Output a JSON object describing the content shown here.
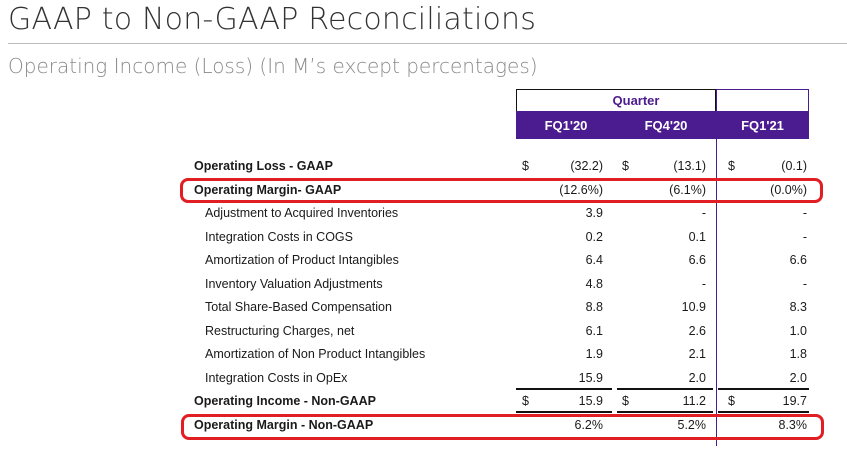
{
  "title": "GAAP to Non-GAAP Reconciliations",
  "subtitle": "Operating Income (Loss) (In M’s except percentages)",
  "header": {
    "group_label": "Quarter",
    "columns": [
      "FQ1'20",
      "FQ4'20",
      "FQ1'21"
    ]
  },
  "rows": [
    {
      "label": "Operating Loss - GAAP",
      "bold": true,
      "currency": "$",
      "values": [
        "(32.2)",
        "(13.1)",
        "(0.1)"
      ]
    },
    {
      "label": "Operating Margin- GAAP",
      "bold": true,
      "currency": "",
      "values": [
        "(12.6%)",
        "(6.1%)",
        "(0.0%)"
      ]
    },
    {
      "label": "Adjustment to Acquired Inventories",
      "bold": false,
      "currency": "",
      "values": [
        "3.9",
        "-",
        "-"
      ]
    },
    {
      "label": "Integration Costs in COGS",
      "bold": false,
      "currency": "",
      "values": [
        "0.2",
        "0.1",
        "-"
      ]
    },
    {
      "label": "Amortization of Product Intangibles",
      "bold": false,
      "currency": "",
      "values": [
        "6.4",
        "6.6",
        "6.6"
      ]
    },
    {
      "label": "Inventory Valuation Adjustments",
      "bold": false,
      "currency": "",
      "values": [
        "4.8",
        "-",
        "-"
      ]
    },
    {
      "label": "Total Share-Based Compensation",
      "bold": false,
      "currency": "",
      "values": [
        "8.8",
        "10.9",
        "8.3"
      ]
    },
    {
      "label": "Restructuring Charges, net",
      "bold": false,
      "currency": "",
      "values": [
        "6.1",
        "2.6",
        "1.0"
      ]
    },
    {
      "label": "Amortization of Non Product Intangibles",
      "bold": false,
      "currency": "",
      "values": [
        "1.9",
        "2.1",
        "1.8"
      ]
    },
    {
      "label": "Integration Costs in OpEx",
      "bold": false,
      "currency": "",
      "values": [
        "15.9",
        "2.0",
        "2.0"
      ]
    },
    {
      "label": "Operating Income - Non-GAAP",
      "bold": true,
      "currency": "$",
      "values": [
        "15.9",
        "11.2",
        "19.7"
      ]
    },
    {
      "label": "Operating Margin - Non-GAAP",
      "bold": true,
      "currency": "",
      "values": [
        "6.2%",
        "5.2%",
        "8.3%"
      ]
    }
  ],
  "colors": {
    "accent": "#4b1c8f",
    "highlight": "#e01e24"
  }
}
